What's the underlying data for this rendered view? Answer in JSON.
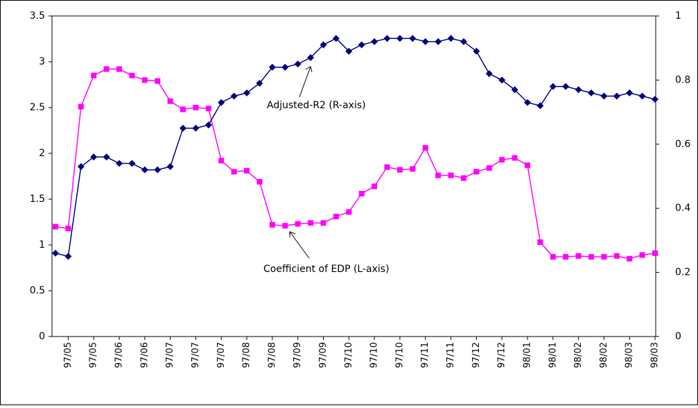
{
  "chart_data": {
    "type": "line",
    "categories": [
      null,
      "97/05",
      null,
      "97/05",
      null,
      "97/06",
      null,
      "97/06",
      null,
      "97/07",
      null,
      "97/07",
      null,
      "97/07",
      null,
      "97/08",
      null,
      "97/08",
      null,
      "97/09",
      null,
      "97/09",
      null,
      "97/10",
      null,
      "97/10",
      null,
      "97/10",
      null,
      "97/11",
      null,
      "97/11",
      null,
      "97/12",
      null,
      "97/12",
      null,
      "98/01",
      null,
      "98/01",
      null,
      "98/02",
      null,
      "98/02",
      null,
      "98/03",
      null,
      "98/03"
    ],
    "series": [
      {
        "color": "#ff00ff",
        "marker": "square",
        "values": [
          1.2,
          1.18,
          2.51,
          2.85,
          2.92,
          2.92,
          2.85,
          2.8,
          2.79,
          2.57,
          2.48,
          2.5,
          2.49,
          1.92,
          1.8,
          1.81,
          1.69,
          1.22,
          1.21,
          1.23,
          1.24,
          1.24,
          1.31,
          1.36,
          1.56,
          1.64,
          1.85,
          1.82,
          1.83,
          2.06,
          1.76,
          1.76,
          1.73,
          1.8,
          1.84,
          1.93,
          1.95,
          1.87,
          1.03,
          0.87,
          0.87,
          0.88,
          0.87,
          0.87,
          0.88,
          0.85,
          0.89,
          0.91
        ]
      },
      {
        "color": "#000080",
        "marker": "diamond",
        "axis": "y2",
        "values": [
          0.26,
          0.25,
          0.53,
          0.56,
          0.56,
          0.54,
          0.54,
          0.52,
          0.52,
          0.53,
          0.65,
          0.65,
          0.66,
          0.73,
          0.75,
          0.76,
          0.79,
          0.84,
          0.84,
          0.85,
          0.87,
          0.91,
          0.93,
          0.89,
          0.91,
          0.92,
          0.93,
          0.93,
          0.93,
          0.92,
          0.92,
          0.93,
          0.92,
          0.89,
          0.82,
          0.8,
          0.77,
          0.73,
          0.72,
          0.78,
          0.78,
          0.77,
          0.76,
          0.75,
          0.75,
          0.76,
          0.75,
          0.74
        ]
      }
    ],
    "ylim": [
      0,
      3.5
    ],
    "yticks": [
      0,
      0.5,
      1,
      1.5,
      2,
      2.5,
      3,
      3.5
    ],
    "y2lim": [
      0,
      1
    ],
    "y2ticks": [
      0,
      0.2,
      0.4,
      0.6,
      0.8,
      1
    ],
    "annotations": [
      "Adjusted-R2 (R-axis)",
      "Coefficient of EDP (L-axis)"
    ]
  }
}
